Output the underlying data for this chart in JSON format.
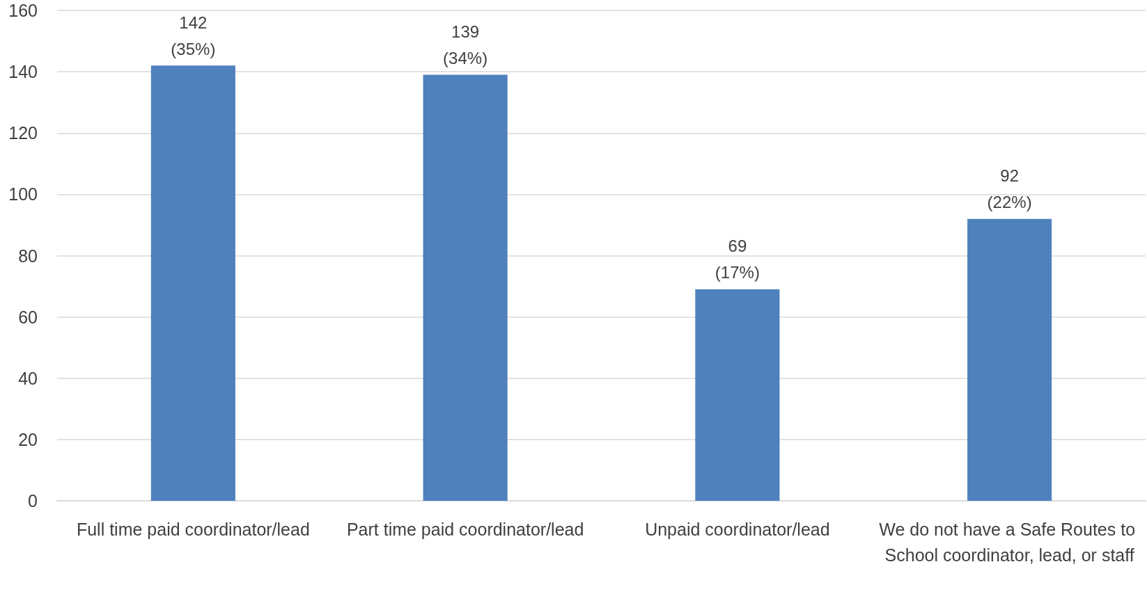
{
  "chart_data": {
    "type": "bar",
    "categories": [
      "Full time paid coordinator/lead",
      "Part time paid coordinator/lead",
      "Unpaid coordinator/lead",
      "We do not have a Safe Routes to School coordinator, lead, or staff"
    ],
    "values": [
      142,
      139,
      69,
      92
    ],
    "value_labels": [
      "142\n(35%)",
      "139\n(34%)",
      "69\n(17%)",
      "92\n(22%)"
    ],
    "color": "#4f81bd",
    "ylim": [
      0,
      160
    ],
    "yticks": [
      0,
      20,
      40,
      60,
      80,
      100,
      120,
      140,
      160
    ],
    "grid": "y"
  }
}
